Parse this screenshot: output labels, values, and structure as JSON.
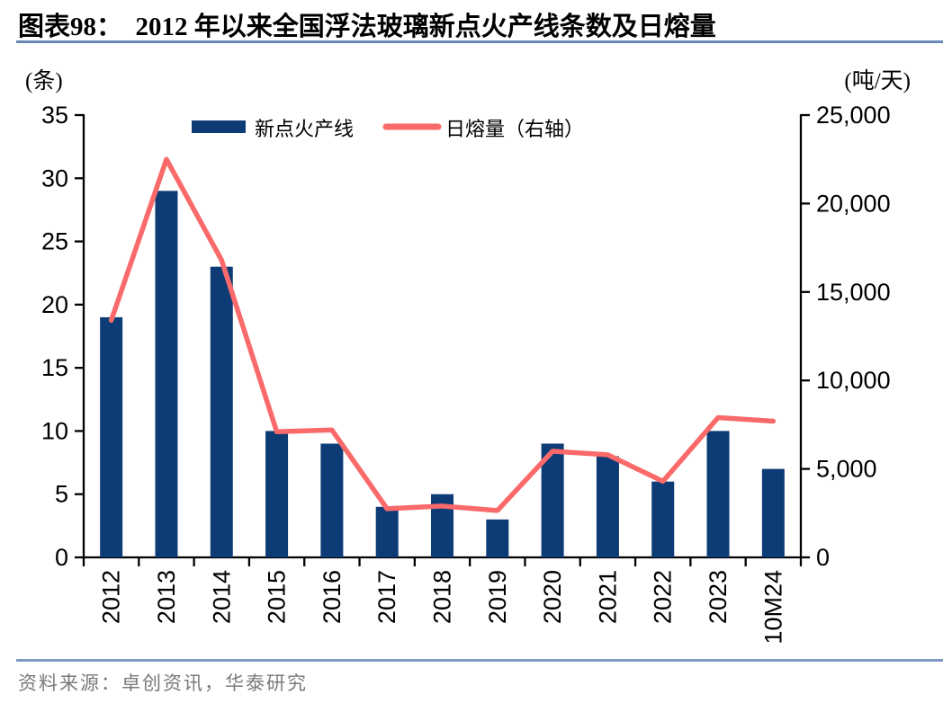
{
  "figure": {
    "title": "图表98：  2012 年以来全国浮法玻璃新点火产线条数及日熔量",
    "left_unit": "(条)",
    "right_unit": "(吨/天)",
    "source": "资料来源：卓创资讯，华泰研究"
  },
  "colors": {
    "bar": "#0D3B76",
    "line": "#FA6A6A",
    "rule_top": "#6888B8",
    "rule_bottom": "#7C99C8",
    "axis": "#000000",
    "source_text": "#7A7A7A"
  },
  "chart_data": {
    "type": "combo-bar-line",
    "title": "2012 年以来全国浮法玻璃新点火产线条数及日熔量",
    "categories": [
      "2012",
      "2013",
      "2014",
      "2015",
      "2016",
      "2017",
      "2018",
      "2019",
      "2020",
      "2021",
      "2022",
      "2023",
      "10M24"
    ],
    "series": [
      {
        "name": "新点火产线",
        "type": "bar",
        "axis": "left",
        "unit": "条",
        "values": [
          19,
          29,
          23,
          10,
          9,
          4,
          5,
          3,
          9,
          8,
          6,
          10,
          7
        ]
      },
      {
        "name": "日熔量（右轴）",
        "type": "line",
        "axis": "right",
        "unit": "吨/天",
        "values": [
          13400,
          22500,
          16800,
          7100,
          7200,
          2750,
          2900,
          2650,
          6000,
          5800,
          4300,
          7900,
          7700
        ]
      }
    ],
    "left_axis": {
      "min": 0,
      "max": 35,
      "step": 5,
      "tick_labels": [
        "0",
        "5",
        "10",
        "15",
        "20",
        "25",
        "30",
        "35"
      ]
    },
    "right_axis": {
      "min": 0,
      "max": 25000,
      "step": 5000,
      "tick_labels": [
        "0",
        "5,000",
        "10,000",
        "15,000",
        "20,000",
        "25,000"
      ]
    },
    "grid": false,
    "legend_position": "top-center"
  }
}
